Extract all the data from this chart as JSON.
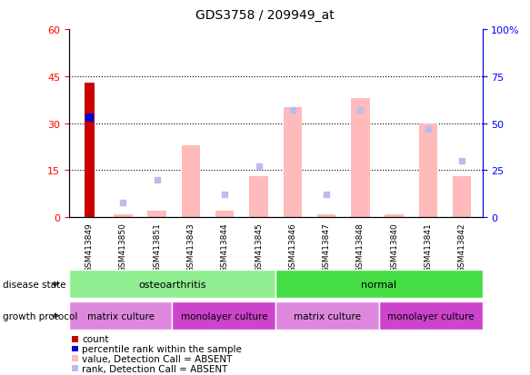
{
  "title": "GDS3758 / 209949_at",
  "samples": [
    "GSM413849",
    "GSM413850",
    "GSM413851",
    "GSM413843",
    "GSM413844",
    "GSM413845",
    "GSM413846",
    "GSM413847",
    "GSM413848",
    "GSM413840",
    "GSM413841",
    "GSM413842"
  ],
  "count_values": [
    43,
    0,
    0,
    0,
    0,
    0,
    0,
    0,
    0,
    0,
    0,
    0
  ],
  "percentile_rank_pct": [
    53,
    0,
    0,
    0,
    0,
    0,
    0,
    0,
    0,
    0,
    0,
    0
  ],
  "absent_value": [
    0,
    1,
    2,
    23,
    2,
    13,
    35,
    1,
    38,
    1,
    30,
    13
  ],
  "absent_rank_pct": [
    0,
    8,
    20,
    0,
    12,
    27,
    57,
    12,
    57,
    0,
    47,
    30
  ],
  "ylim_left": [
    0,
    60
  ],
  "ylim_right": [
    0,
    100
  ],
  "yticks_left": [
    0,
    15,
    30,
    45,
    60
  ],
  "yticks_right": [
    0,
    25,
    50,
    75,
    100
  ],
  "ytick_labels_left": [
    "0",
    "15",
    "30",
    "45",
    "60"
  ],
  "ytick_labels_right": [
    "0",
    "25",
    "50",
    "75",
    "100%"
  ],
  "disease_state": [
    {
      "label": "osteoarthritis",
      "start": 0,
      "end": 5,
      "color": "#90ee90"
    },
    {
      "label": "normal",
      "start": 6,
      "end": 11,
      "color": "#44dd44"
    }
  ],
  "growth_protocol": [
    {
      "label": "matrix culture",
      "start": 0,
      "end": 2,
      "color": "#dd88dd"
    },
    {
      "label": "monolayer culture",
      "start": 3,
      "end": 5,
      "color": "#cc44cc"
    },
    {
      "label": "matrix culture",
      "start": 6,
      "end": 8,
      "color": "#dd88dd"
    },
    {
      "label": "monolayer culture",
      "start": 9,
      "end": 11,
      "color": "#cc44cc"
    }
  ],
  "count_color": "#cc0000",
  "rank_color": "#0000cc",
  "absent_value_color": "#ffbbbb",
  "absent_rank_color": "#bbbbee",
  "legend_items": [
    {
      "label": "count",
      "color": "#cc0000"
    },
    {
      "label": "percentile rank within the sample",
      "color": "#0000cc"
    },
    {
      "label": "value, Detection Call = ABSENT",
      "color": "#ffbbbb"
    },
    {
      "label": "rank, Detection Call = ABSENT",
      "color": "#bbbbee"
    }
  ]
}
